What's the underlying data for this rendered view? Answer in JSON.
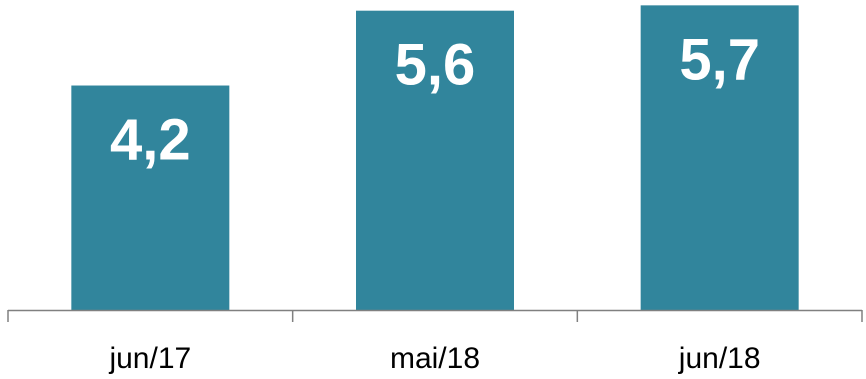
{
  "chart_data": {
    "type": "bar",
    "categories": [
      "jun/17",
      "mai/18",
      "jun/18"
    ],
    "values": [
      4.2,
      5.6,
      5.7
    ],
    "value_labels": [
      "4,2",
      "5,6",
      "5,7"
    ],
    "ylim": [
      0,
      5.8
    ],
    "bar_color": "#31859c",
    "label_color": "#ffffff",
    "grid": false,
    "legend": "none"
  }
}
